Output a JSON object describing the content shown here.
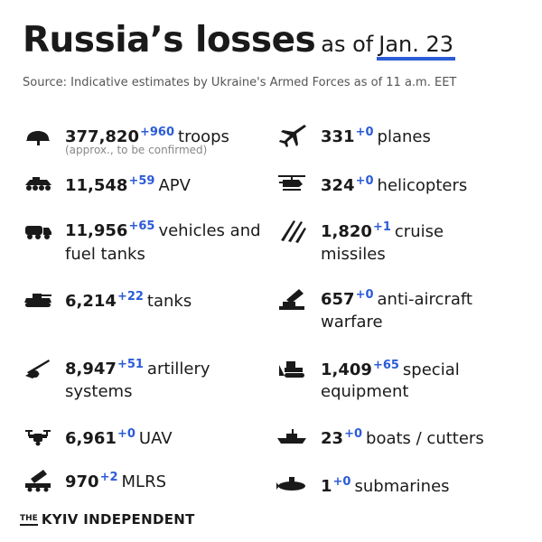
{
  "header": {
    "title": "Russia’s losses",
    "as_of": "as of",
    "date": "Jan. 23",
    "source": "Source: Indicative estimates by Ukraine's Armed Forces as of 11 a.m. EET"
  },
  "accent_color": "#2b5bd7",
  "items": {
    "troops": {
      "icon": "helmet-icon",
      "value": "377,820",
      "delta": "+960",
      "label": "troops",
      "note": "(approx., to be confirmed)"
    },
    "apv": {
      "icon": "apv-icon",
      "value": "11,548",
      "delta": "+59",
      "label": "APV"
    },
    "vehicles": {
      "icon": "fuel-truck-icon",
      "value": "11,956",
      "delta": "+65",
      "label": "vehicles and",
      "label2": "fuel tanks"
    },
    "tanks": {
      "icon": "tank-icon",
      "value": "6,214",
      "delta": "+22",
      "label": "tanks"
    },
    "artillery": {
      "icon": "artillery-icon",
      "value": "8,947",
      "delta": "+51",
      "label": "artillery",
      "label2": "systems"
    },
    "uav": {
      "icon": "drone-icon",
      "value": "6,961",
      "delta": "+0",
      "label": "UAV"
    },
    "mlrs": {
      "icon": "mlrs-icon",
      "value": "970",
      "delta": "+2",
      "label": "MLRS"
    },
    "planes": {
      "icon": "jet-icon",
      "value": "331",
      "delta": "+0",
      "label": "planes"
    },
    "helicopters": {
      "icon": "helicopter-icon",
      "value": "324",
      "delta": "+0",
      "label": "helicopters"
    },
    "missiles": {
      "icon": "missile-icon",
      "value": "1,820",
      "delta": "+1",
      "label": "cruise",
      "label2": "missiles"
    },
    "antiair": {
      "icon": "anti-aircraft-icon",
      "value": "657",
      "delta": "+0",
      "label": "anti-aircraft",
      "label2": "warfare"
    },
    "special": {
      "icon": "bulldozer-icon",
      "value": "1,409",
      "delta": "+65",
      "label": "special",
      "label2": "equipment"
    },
    "boats": {
      "icon": "ship-icon",
      "value": "23",
      "delta": "+0",
      "label": "boats / cutters"
    },
    "submarines": {
      "icon": "submarine-icon",
      "value": "1",
      "delta": "+0",
      "label": "submarines"
    }
  },
  "brand": {
    "the": "THE",
    "name": "KYIV INDEPENDENT"
  }
}
